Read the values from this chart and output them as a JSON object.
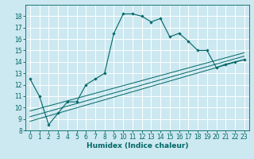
{
  "title": "",
  "xlabel": "Humidex (Indice chaleur)",
  "bg_color": "#cce8f0",
  "grid_color": "#ffffff",
  "line_color": "#006666",
  "xlim": [
    -0.5,
    23.5
  ],
  "ylim": [
    8,
    19
  ],
  "xticks": [
    0,
    1,
    2,
    3,
    4,
    5,
    6,
    7,
    8,
    9,
    10,
    11,
    12,
    13,
    14,
    15,
    16,
    17,
    18,
    19,
    20,
    21,
    22,
    23
  ],
  "yticks": [
    8,
    9,
    10,
    11,
    12,
    13,
    14,
    15,
    16,
    17,
    18
  ],
  "curve1_x": [
    0,
    1,
    2,
    3,
    4,
    5,
    6,
    7,
    8,
    9,
    10,
    11,
    12,
    13,
    14,
    15,
    16,
    17,
    18,
    19,
    20,
    21,
    22,
    23
  ],
  "curve1_y": [
    12.5,
    11.0,
    8.5,
    9.5,
    10.5,
    10.5,
    12.0,
    12.5,
    13.0,
    16.5,
    18.2,
    18.2,
    18.0,
    17.5,
    17.8,
    16.2,
    16.5,
    15.8,
    15.0,
    15.0,
    13.5,
    13.8,
    14.0,
    14.2
  ],
  "curve2_x": [
    0,
    23
  ],
  "curve2_y": [
    8.8,
    14.2
  ],
  "curve3_x": [
    0,
    23
  ],
  "curve3_y": [
    9.2,
    14.5
  ],
  "curve4_x": [
    0,
    23
  ],
  "curve4_y": [
    9.7,
    14.8
  ],
  "xlabel_fontsize": 6.5,
  "tick_fontsize": 5.5
}
